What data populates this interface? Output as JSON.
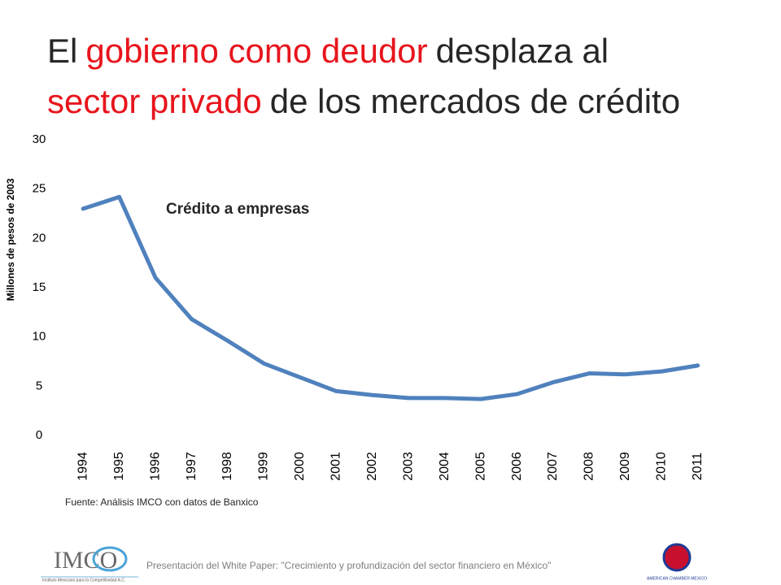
{
  "chart_data": {
    "type": "line",
    "title_lines": [
      [
        {
          "text": "El",
          "color": "#262626"
        },
        {
          "text": "gobierno como deudor",
          "color": "#e8141c"
        },
        {
          "text": "desplaza al",
          "color": "#262626"
        }
      ],
      [
        {
          "text": "sector privado",
          "color": "#e8141c"
        },
        {
          "text": "de los mercados de crédito",
          "color": "#262626"
        }
      ]
    ],
    "y_label": "Millones de pesos de 2003",
    "annotation": "Crédito a empresas",
    "categories": [
      "1994",
      "1995",
      "1996",
      "1997",
      "1998",
      "1999",
      "2000",
      "2001",
      "2002",
      "2003",
      "2004",
      "2005",
      "2006",
      "2007",
      "2008",
      "2009",
      "2010",
      "2011"
    ],
    "values": [
      23.0,
      24.2,
      16.0,
      11.8,
      9.6,
      7.3,
      5.9,
      4.5,
      4.1,
      3.8,
      3.8,
      3.7,
      4.2,
      5.4,
      6.3,
      6.2,
      6.5,
      7.1
    ],
    "color": "#4f81bd",
    "ylim": [
      0,
      30
    ],
    "yticks": [
      0,
      5,
      10,
      15,
      20,
      25,
      30
    ],
    "grid": false,
    "source": "Fuente: Análisis IMCO con datos de  Banxico"
  },
  "footer": {
    "text": "Presentación del White Paper: \"Crecimiento y profundización del sector financiero en México\"",
    "imco_logo": "IMCO",
    "imco_sub": "Instituto Mexicano para la Competitividad A.C.",
    "amcham": "AMERICAN CHAMBER MÉXICO"
  }
}
